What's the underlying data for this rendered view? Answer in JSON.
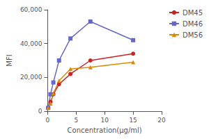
{
  "chart_data": {
    "type": "line",
    "xlabel": "Concentration(μg/ml)",
    "ylabel": "MFI",
    "x": [
      0.1,
      0.5,
      1,
      2,
      4,
      7.5,
      15
    ],
    "series": [
      {
        "name": "DM45",
        "color": "#CC2222",
        "marker": "circle",
        "values": [
          2000,
          5500,
          10000,
          16000,
          22000,
          30000,
          34000
        ]
      },
      {
        "name": "DM46",
        "color": "#6666CC",
        "marker": "square",
        "values": [
          2000,
          10000,
          17000,
          30000,
          43000,
          53000,
          42000
        ]
      },
      {
        "name": "DM56",
        "color": "#DD8800",
        "marker": "triangle",
        "values": [
          2000,
          4500,
          10500,
          18000,
          25000,
          26000,
          29000
        ]
      }
    ],
    "xlim": [
      0,
      20
    ],
    "xticks": [
      0,
      5,
      10,
      15,
      20
    ],
    "ylim": [
      0,
      60000
    ],
    "yticks": [
      0,
      20000,
      40000,
      60000
    ],
    "grid": false,
    "legend": "upper right"
  }
}
